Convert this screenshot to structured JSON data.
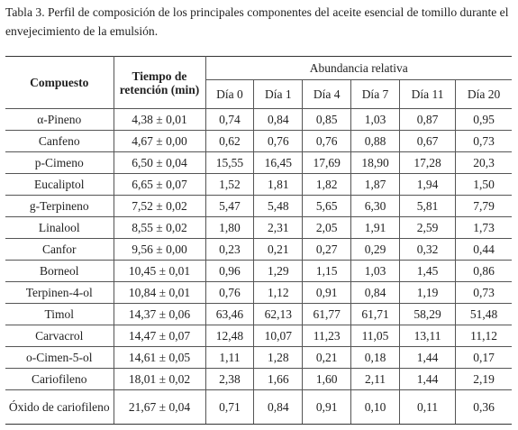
{
  "caption": {
    "label": "Tabla 3.",
    "text": "Perfil de composición de los principales componentes del aceite esencial de tomillo durante el envejecimiento de la emulsión."
  },
  "table": {
    "headers": {
      "compound": "Compuesto",
      "time": "Tiempo de retención (min)",
      "group": "Abundancia relativa",
      "days": [
        "Día 0",
        "Día 1",
        "Día 4",
        "Día 7",
        "Día 11",
        "Día 20"
      ]
    },
    "rows": [
      [
        "α-Pineno",
        "4,38 ± 0,01",
        "0,74",
        "0,84",
        "0,85",
        "1,03",
        "0,87",
        "0,95"
      ],
      [
        "Canfeno",
        "4,67 ± 0,00",
        "0,62",
        "0,76",
        "0,76",
        "0,88",
        "0,67",
        "0,73"
      ],
      [
        "p-Cimeno",
        "6,50 ± 0,04",
        "15,55",
        "16,45",
        "17,69",
        "18,90",
        "17,28",
        "20,3"
      ],
      [
        "Eucaliptol",
        "6,65 ± 0,07",
        "1,52",
        "1,81",
        "1,82",
        "1,87",
        "1,94",
        "1,50"
      ],
      [
        "g-Terpineno",
        "7,52 ± 0,02",
        "5,47",
        "5,48",
        "5,65",
        "6,30",
        "5,81",
        "7,79"
      ],
      [
        "Linalool",
        "8,55 ± 0,02",
        "1,80",
        "2,31",
        "2,05",
        "1,91",
        "2,59",
        "1,73"
      ],
      [
        "Canfor",
        "9,56 ± 0,00",
        "0,23",
        "0,21",
        "0,27",
        "0,29",
        "0,32",
        "0,44"
      ],
      [
        "Borneol",
        "10,45 ± 0,01",
        "0,96",
        "1,29",
        "1,15",
        "1,03",
        "1,45",
        "0,86"
      ],
      [
        "Terpinen-4-ol",
        "10,84 ± 0,01",
        "0,76",
        "1,12",
        "0,91",
        "0,84",
        "1,19",
        "0,73"
      ],
      [
        "Timol",
        "14,37 ± 0,06",
        "63,46",
        "62,13",
        "61,77",
        "61,71",
        "58,29",
        "51,48"
      ],
      [
        "Carvacrol",
        "14,47 ± 0,07",
        "12,48",
        "10,07",
        "11,23",
        "11,05",
        "13,11",
        "11,12"
      ],
      [
        "o-Cimen-5-ol",
        "14,61 ± 0,05",
        "1,11",
        "1,28",
        "0,21",
        "0,18",
        "1,44",
        "0,17"
      ],
      [
        "Cariofileno",
        "18,01 ± 0,02",
        "2,38",
        "1,66",
        "1,60",
        "2,11",
        "1,44",
        "2,19"
      ],
      [
        "Óxido de cariofileno",
        "21,67 ± 0,04",
        "0,71",
        "0,84",
        "0,91",
        "0,10",
        "0,11",
        "0,36"
      ]
    ]
  }
}
